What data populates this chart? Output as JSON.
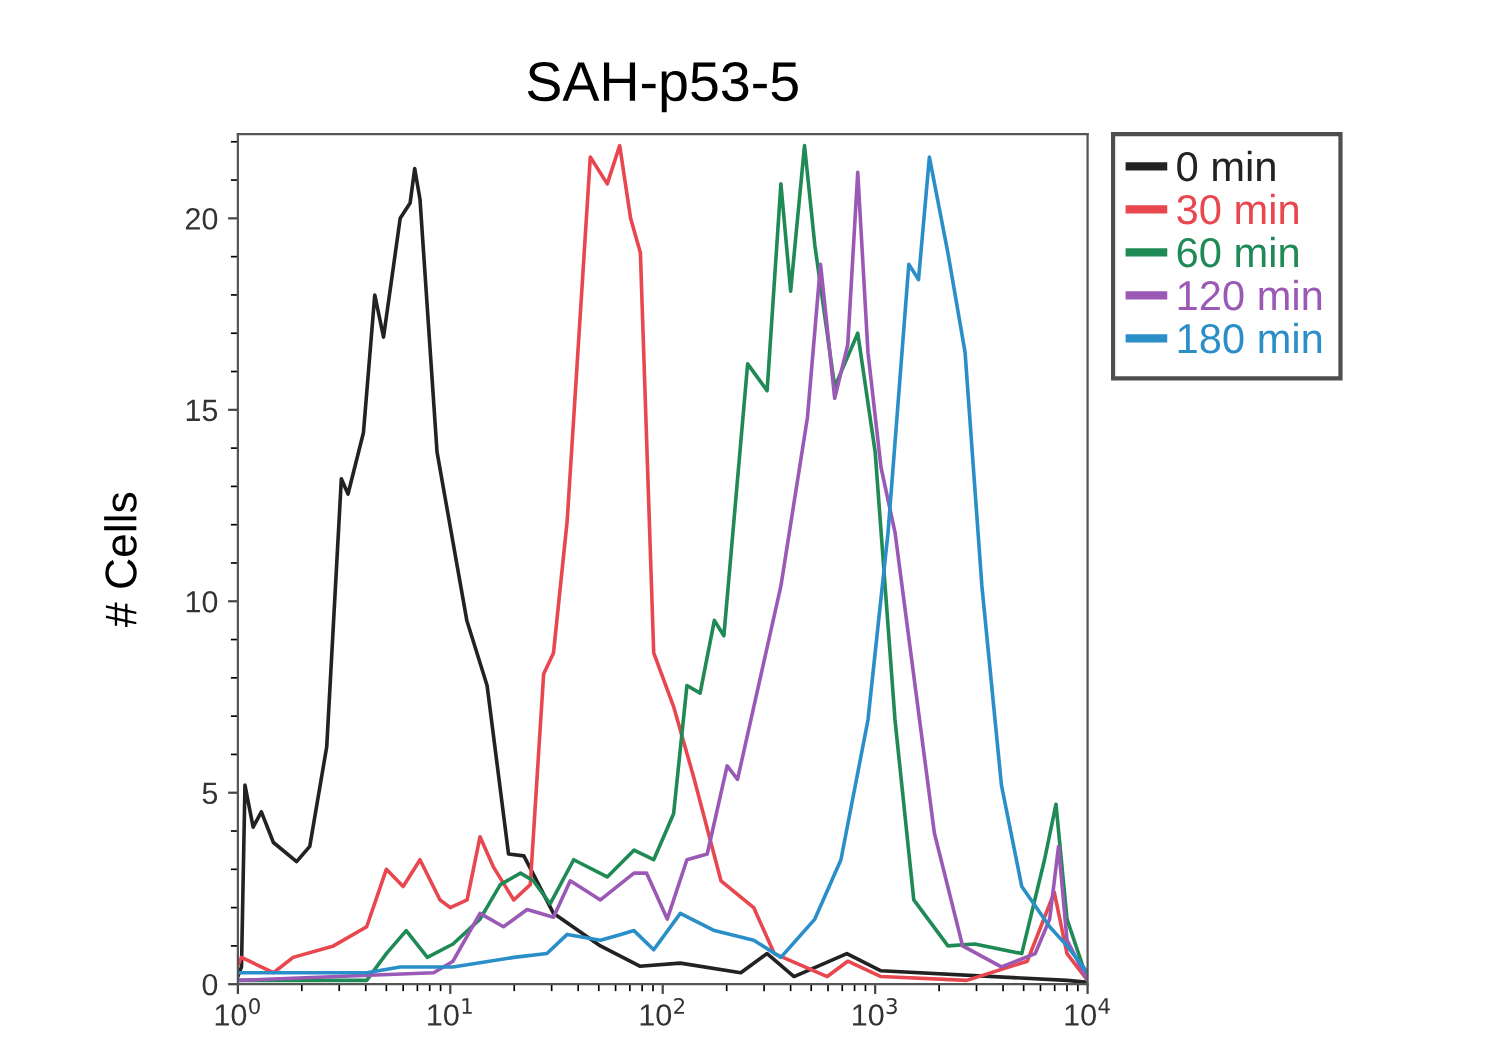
{
  "chart_data": {
    "type": "line",
    "title": "SAH-p53-5",
    "ylabel": "# Cells",
    "log": "x",
    "xlim": [
      1,
      10000
    ],
    "xticks": [
      {
        "value": 1,
        "label": "10$^{0}$"
      },
      {
        "value": 10,
        "label": "10$^{1}$"
      },
      {
        "value": 100,
        "label": "10$^{2}$"
      },
      {
        "value": 1000,
        "label": "10$^{3}$"
      },
      {
        "value": 10000,
        "label": "10$^{4}$"
      }
    ],
    "ylim": [
      0,
      22.2
    ],
    "yticks": [
      0,
      5,
      10,
      15,
      20
    ],
    "grid": false,
    "legend": "top right",
    "series": [
      {
        "name": "0 min",
        "color": "#222222",
        "x": [
          1.0,
          1.04,
          1.08,
          1.18,
          1.29,
          1.47,
          1.89,
          2.18,
          2.62,
          3.07,
          3.3,
          3.9,
          4.41,
          4.85,
          5.81,
          6.47,
          6.8,
          7.2,
          8.66,
          11.96,
          14.9,
          18.8,
          22.2,
          30.6,
          50.9,
          78,
          121,
          233,
          310,
          415,
          736,
          1065,
          8000,
          10000
        ],
        "values": [
          0.2,
          0.45,
          5.2,
          4.1,
          4.5,
          3.7,
          3.2,
          3.6,
          6.2,
          13.2,
          12.8,
          14.4,
          18.0,
          16.9,
          20.0,
          20.4,
          21.3,
          20.5,
          13.9,
          9.5,
          7.8,
          3.4,
          3.35,
          1.85,
          1.0,
          0.47,
          0.55,
          0.3,
          0.8,
          0.2,
          0.8,
          0.35,
          0.1,
          0.05
        ]
      },
      {
        "name": "30 min",
        "color": "#e8474f",
        "x": [
          1.0,
          1.04,
          1.47,
          1.82,
          2.82,
          4.04,
          5.0,
          6.0,
          7.2,
          8.95,
          10.0,
          12.0,
          13.8,
          16.0,
          19.9,
          23.8,
          27.5,
          30.6,
          35.5,
          45.6,
          54.8,
          62.7,
          70.6,
          78.5,
          90.7,
          112.5,
          140,
          188,
          268,
          335,
          595,
          743,
          1065,
          2700,
          5200,
          6970,
          8000,
          10000
        ],
        "values": [
          0.5,
          0.7,
          0.3,
          0.7,
          1.0,
          1.5,
          3.0,
          2.55,
          3.25,
          2.2,
          2.0,
          2.2,
          3.85,
          3.05,
          2.2,
          2.6,
          8.1,
          8.65,
          12.1,
          21.6,
          20.9,
          21.9,
          20.0,
          19.1,
          8.65,
          7.25,
          5.4,
          2.7,
          2.0,
          0.8,
          0.2,
          0.6,
          0.2,
          0.1,
          0.6,
          2.4,
          0.8,
          0.1
        ]
      },
      {
        "name": "60 min",
        "color": "#1f8a55",
        "x": [
          1.0,
          4.04,
          5.0,
          6.2,
          7.8,
          10.3,
          13.8,
          17.2,
          21.4,
          24.6,
          29.5,
          38.1,
          54.8,
          73.2,
          90.7,
          112.5,
          130,
          150,
          175,
          194,
          251,
          310,
          360,
          400,
          465,
          520,
          645,
          828,
          1000,
          1240,
          1520,
          2200,
          2940,
          4900,
          6270,
          7100,
          8000,
          10000
        ],
        "values": [
          0.1,
          0.1,
          0.8,
          1.4,
          0.7,
          1.05,
          1.7,
          2.6,
          2.9,
          2.7,
          2.1,
          3.25,
          2.8,
          3.5,
          3.25,
          4.45,
          7.8,
          7.6,
          9.5,
          9.1,
          16.2,
          15.5,
          20.9,
          18.1,
          21.9,
          19.3,
          15.6,
          17.0,
          13.9,
          6.9,
          2.2,
          1.0,
          1.05,
          0.8,
          3.25,
          4.7,
          1.7,
          0.1
        ]
      },
      {
        "name": "120 min",
        "color": "#9b59b6",
        "x": [
          1.0,
          8.35,
          10.3,
          13.8,
          17.8,
          23.0,
          30.6,
          36.7,
          50.9,
          73.2,
          84,
          105,
          130,
          162,
          201,
          225,
          360,
          480,
          553,
          645,
          743,
          828,
          925,
          1065,
          1240,
          1900,
          2580,
          3930,
          5670,
          6630,
          7300,
          8000,
          10000
        ],
        "values": [
          0.1,
          0.3,
          0.6,
          1.85,
          1.5,
          1.95,
          1.75,
          2.7,
          2.2,
          2.9,
          2.9,
          1.7,
          3.25,
          3.4,
          5.7,
          5.35,
          10.4,
          14.8,
          18.8,
          15.3,
          16.7,
          21.2,
          16.5,
          13.5,
          11.8,
          3.95,
          1.0,
          0.45,
          0.8,
          1.7,
          3.6,
          1.15,
          0.1
        ]
      },
      {
        "name": "180 min",
        "color": "#2a8fc8",
        "x": [
          1.0,
          4.04,
          5.81,
          10.3,
          19.9,
          28.5,
          35.5,
          50.9,
          63.5,
          73.2,
          90.7,
          121,
          175,
          268,
          360,
          520,
          690,
          925,
          1150,
          1440,
          1600,
          1800,
          2200,
          2650,
          3180,
          3930,
          4900,
          6630,
          8000,
          10000
        ],
        "values": [
          0.3,
          0.3,
          0.45,
          0.45,
          0.7,
          0.8,
          1.3,
          1.15,
          1.3,
          1.4,
          0.9,
          1.85,
          1.4,
          1.15,
          0.7,
          1.7,
          3.25,
          6.9,
          11.8,
          18.8,
          18.4,
          21.6,
          19.1,
          16.5,
          10.4,
          5.2,
          2.55,
          1.5,
          1.0,
          0.3
        ]
      }
    ]
  }
}
